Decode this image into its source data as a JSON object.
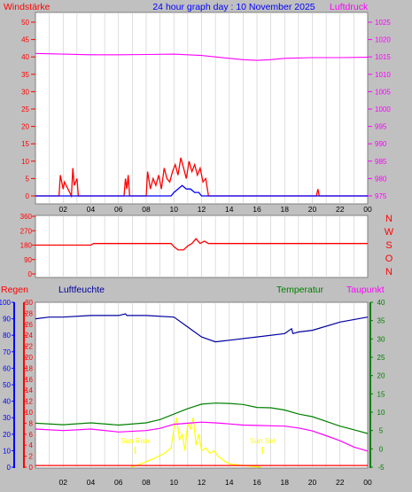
{
  "colors": {
    "background": "#c0c0c0",
    "plot_background": "#ffffff",
    "wind": "#ff0000",
    "wind_avg": "#0000ff",
    "pressure": "#ff00ff",
    "direction": "#ff0000",
    "humidity": "#0000a0",
    "temperature": "#008000",
    "dewpoint": "#ff00ff",
    "rain": "#ff0000",
    "solar": "#ffff00",
    "title": "#0000ff"
  },
  "header": {
    "left_label": "Windstärke",
    "title": "24 hour graph day : 10 November 2025",
    "right_label": "Luftdruck"
  },
  "chart_data": [
    {
      "type": "line",
      "panel": "wind-pressure",
      "x_ticks": [
        "02",
        "04",
        "06",
        "08",
        "10",
        "12",
        "14",
        "16",
        "18",
        "20",
        "22",
        "00"
      ],
      "left_axis": {
        "label": "Windstärke",
        "ylim": [
          0,
          50
        ],
        "ticks": [
          "0",
          "5",
          "10",
          "15",
          "20",
          "25",
          "30",
          "35",
          "40",
          "45",
          "50"
        ]
      },
      "right_axis": {
        "label": "Luftdruck",
        "ylim": [
          975,
          1025
        ],
        "ticks": [
          "975",
          "980",
          "985",
          "990",
          "995",
          "1000",
          "1005",
          "1010",
          "1015",
          "1020",
          "1025"
        ]
      },
      "series": [
        {
          "name": "Windstärke",
          "x": [
            0,
            1.7,
            1.8,
            2.0,
            2.1,
            2.6,
            2.7,
            2.8,
            3.0,
            3.1,
            6.4,
            6.5,
            6.6,
            6.7,
            6.8,
            8.0,
            8.1,
            8.3,
            8.5,
            8.7,
            8.9,
            9.1,
            9.3,
            9.5,
            9.7,
            9.9,
            10.1,
            10.3,
            10.5,
            10.7,
            10.9,
            11.1,
            11.3,
            11.5,
            11.7,
            11.9,
            12.1,
            12.3,
            12.5,
            20.3,
            20.4,
            20.5,
            24
          ],
          "y": [
            0,
            0,
            6,
            2,
            4,
            0,
            8,
            3,
            5,
            0,
            0,
            5,
            2,
            6,
            0,
            0,
            7,
            2,
            5,
            3,
            6,
            2,
            8,
            5,
            4,
            7,
            9,
            6,
            11,
            8,
            5,
            10,
            7,
            9,
            6,
            8,
            4,
            5,
            0,
            0,
            2,
            0,
            0
          ]
        },
        {
          "name": "Windstärke-Mittel",
          "x": [
            0,
            9.8,
            10.0,
            10.3,
            10.6,
            10.9,
            11.2,
            11.5,
            11.8,
            12.0,
            24
          ],
          "y": [
            0,
            0,
            1,
            2,
            3,
            2,
            2,
            1,
            1,
            0,
            0
          ]
        },
        {
          "name": "Luftdruck",
          "x": [
            0,
            2,
            4,
            6,
            8,
            10,
            12,
            13,
            14,
            15,
            16,
            17,
            18,
            20,
            22,
            24
          ],
          "y": [
            1016.0,
            1015.8,
            1015.6,
            1015.6,
            1015.7,
            1015.8,
            1015.4,
            1015.0,
            1014.6,
            1014.2,
            1014.0,
            1014.2,
            1014.6,
            1014.8,
            1014.8,
            1014.9
          ]
        }
      ]
    },
    {
      "type": "line",
      "panel": "wind-direction",
      "x_ticks": [
        "02",
        "04",
        "06",
        "08",
        "10",
        "12",
        "14",
        "16",
        "18",
        "20",
        "22",
        "00"
      ],
      "left_axis": {
        "ylim": [
          0,
          360
        ],
        "ticks": [
          "0",
          "90",
          "180",
          "270",
          "360"
        ]
      },
      "compass_labels": [
        "N",
        "W",
        "S",
        "O",
        "N"
      ],
      "series": [
        {
          "name": "Windrichtung",
          "x": [
            0,
            4,
            4.2,
            8,
            9.8,
            10.0,
            10.3,
            10.7,
            11.0,
            11.3,
            11.6,
            11.9,
            12.2,
            12.5,
            24
          ],
          "y": [
            180,
            180,
            190,
            190,
            190,
            170,
            150,
            150,
            175,
            190,
            220,
            190,
            205,
            190,
            190
          ]
        }
      ]
    },
    {
      "type": "line",
      "panel": "temperature-humidity",
      "x_ticks": [
        "02",
        "04",
        "06",
        "08",
        "10",
        "12",
        "14",
        "16",
        "18",
        "20",
        "22",
        "00"
      ],
      "labels": {
        "rain": "Regen",
        "humidity": "Luftfeuchte",
        "temperature": "Temperatur",
        "dewpoint": "Taupunkt"
      },
      "annotations": {
        "sunrise": "Sun Rise",
        "sunset": "Sun Set",
        "sunrise_hour": 7.2,
        "sunset_hour": 16.4
      },
      "humidity_axis": {
        "ylim": [
          0,
          100
        ],
        "ticks": [
          "0",
          "10",
          "20",
          "30",
          "40",
          "50",
          "60",
          "70",
          "80",
          "90",
          "100"
        ]
      },
      "rain_axis": {
        "ylim": [
          0,
          30
        ],
        "ticks": [
          "0",
          "2",
          "4",
          "6",
          "8",
          "10",
          "12",
          "14",
          "16",
          "18",
          "20",
          "22",
          "24",
          "26",
          "28",
          "30"
        ]
      },
      "temperature_axis": {
        "ylim": [
          -5,
          40
        ],
        "ticks": [
          "-5",
          "0",
          "5",
          "10",
          "15",
          "20",
          "25",
          "30",
          "35",
          "40"
        ]
      },
      "series": [
        {
          "name": "Luftfeuchte",
          "axis": "humidity",
          "x": [
            0,
            1,
            2,
            4,
            6,
            6.5,
            6.6,
            8,
            10,
            11,
            12,
            13,
            14,
            16,
            18,
            18.5,
            18.6,
            19,
            20,
            22,
            24
          ],
          "y": [
            90,
            91,
            91,
            92,
            92,
            93,
            92,
            92,
            91,
            85,
            79,
            76,
            77,
            79,
            81,
            84,
            81,
            82,
            83,
            88,
            91
          ]
        },
        {
          "name": "Temperatur",
          "axis": "temperature",
          "x": [
            0,
            2,
            4,
            6,
            8,
            9,
            10,
            11,
            12,
            13,
            14,
            15,
            16,
            17,
            18,
            19,
            20,
            21,
            22,
            23,
            24
          ],
          "y": [
            7.0,
            6.6,
            7.1,
            6.5,
            7.1,
            8.0,
            9.5,
            11.0,
            12.2,
            12.5,
            12.4,
            12.1,
            11.3,
            11.2,
            10.6,
            9.5,
            8.8,
            7.5,
            6.2,
            5.2,
            4.2
          ]
        },
        {
          "name": "Taupunkt",
          "axis": "temperature",
          "x": [
            0,
            2,
            4,
            6,
            8,
            9,
            10,
            11,
            12,
            13,
            14,
            15,
            16,
            17,
            18,
            19,
            20,
            21,
            22,
            23,
            24
          ],
          "y": [
            5.4,
            5.0,
            5.4,
            4.6,
            5.0,
            5.6,
            6.7,
            7.0,
            7.3,
            7.1,
            6.8,
            6.5,
            6.4,
            6.3,
            6.2,
            5.7,
            4.9,
            3.6,
            2.2,
            0.5,
            -0.6
          ]
        },
        {
          "name": "Solar",
          "axis": "rain",
          "x": [
            6.9,
            7.5,
            8.5,
            9.3,
            9.8,
            10.0,
            10.2,
            10.4,
            10.6,
            10.8,
            11.0,
            11.2,
            11.4,
            11.6,
            11.8,
            12.0,
            12.3,
            12.6,
            12.9,
            13.2,
            13.6,
            14.0,
            15,
            16.3
          ],
          "y": [
            0,
            0.5,
            1.5,
            2.5,
            3.5,
            7,
            9,
            5,
            6,
            3,
            8,
            7,
            9,
            4,
            6,
            3,
            3.5,
            2.5,
            3,
            2,
            1.2,
            0.6,
            0.3,
            0
          ]
        },
        {
          "name": "Regen",
          "axis": "rain",
          "x": [
            0,
            24
          ],
          "y": [
            0.3,
            0.3
          ]
        }
      ]
    }
  ]
}
